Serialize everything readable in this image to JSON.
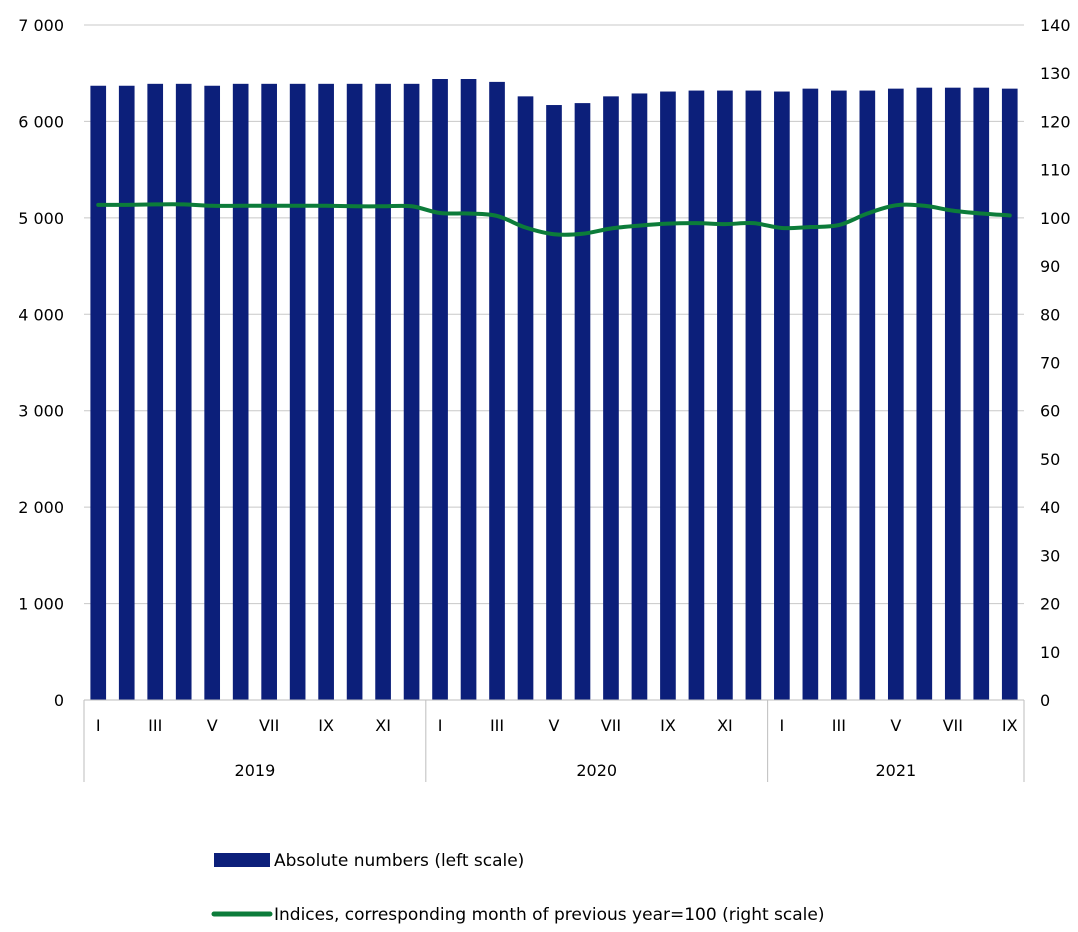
{
  "chart_data": {
    "type": "bar",
    "title": "",
    "x_month_labels": [
      "I",
      "",
      "III",
      "",
      "V",
      "",
      "VII",
      "",
      "IX",
      "",
      "XI",
      "",
      "I",
      "",
      "III",
      "",
      "V",
      "",
      "VII",
      "",
      "IX",
      "",
      "XI",
      "",
      "I",
      "",
      "III",
      "",
      "V",
      "",
      "VII",
      "",
      "IX"
    ],
    "year_groups": [
      {
        "label": "2019",
        "months": 12
      },
      {
        "label": "2020",
        "months": 12
      },
      {
        "label": "2021",
        "months": 9
      }
    ],
    "left_axis": {
      "min": 0,
      "max": 7000,
      "ticks": [
        0,
        1000,
        2000,
        3000,
        4000,
        5000,
        6000,
        7000
      ],
      "tick_labels": [
        "0",
        "1 000",
        "2 000",
        "3 000",
        "4 000",
        "5 000",
        "6 000",
        "7 000"
      ]
    },
    "right_axis": {
      "min": 0,
      "max": 140,
      "ticks": [
        0,
        10,
        20,
        30,
        40,
        50,
        60,
        70,
        80,
        90,
        100,
        110,
        120,
        130,
        140
      ],
      "tick_labels": [
        "0",
        "10",
        "20",
        "30",
        "40",
        "50",
        "60",
        "70",
        "80",
        "90",
        "100",
        "110",
        "120",
        "130",
        "140"
      ]
    },
    "gridlines": "horizontal",
    "legend_position": "bottom",
    "series": [
      {
        "name": "Absolute numbers (left scale)",
        "type": "bar",
        "axis": "left",
        "color": "#0c1f7a",
        "values": [
          6370,
          6370,
          6390,
          6390,
          6370,
          6390,
          6390,
          6390,
          6390,
          6390,
          6390,
          6390,
          6440,
          6440,
          6410,
          6260,
          6170,
          6190,
          6260,
          6290,
          6310,
          6320,
          6320,
          6320,
          6310,
          6340,
          6320,
          6320,
          6340,
          6350,
          6350,
          6350,
          6340
        ]
      },
      {
        "name": "Indices, corresponding month of previous year=100 (right scale)",
        "type": "line",
        "axis": "right",
        "color": "#0c7c3a",
        "values": [
          102.7,
          102.7,
          102.8,
          102.8,
          102.5,
          102.5,
          102.5,
          102.5,
          102.5,
          102.4,
          102.4,
          102.4,
          101.0,
          100.9,
          100.4,
          98.0,
          96.6,
          96.7,
          97.8,
          98.4,
          98.8,
          98.9,
          98.7,
          98.9,
          97.9,
          98.1,
          98.5,
          100.9,
          102.6,
          102.5,
          101.5,
          100.9,
          100.5
        ]
      }
    ]
  }
}
